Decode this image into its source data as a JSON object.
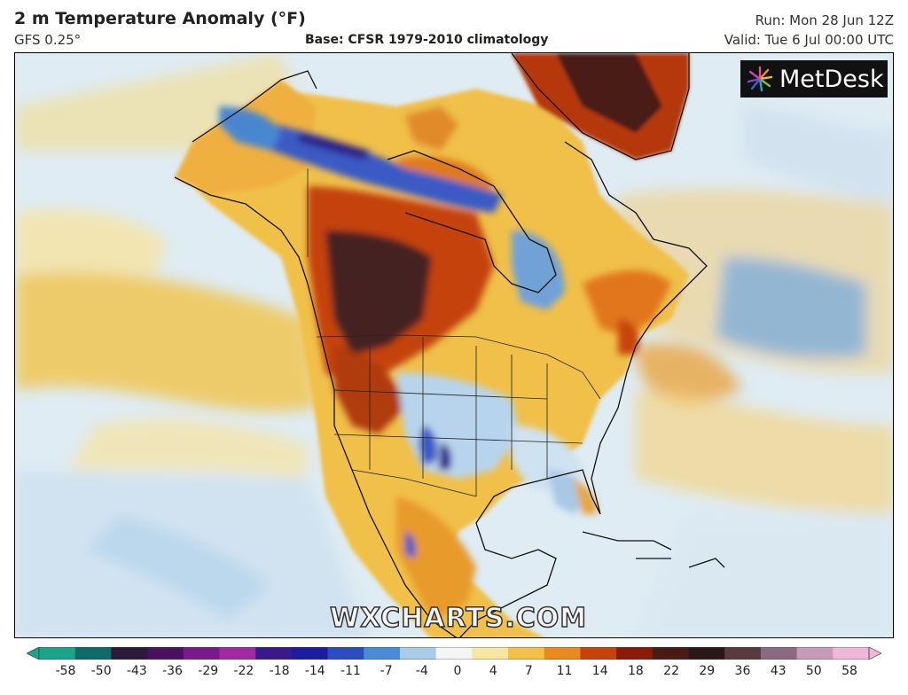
{
  "header": {
    "title": "2 m Temperature Anomaly (°F)",
    "model": "GFS 0.25°",
    "base": "Base: CFSR 1979-2010 climatology",
    "run": "Run: Mon 28 Jun 12Z",
    "valid": "Valid: Tue 6 Jul 00:00 UTC"
  },
  "logo": {
    "text": "MetDesk",
    "icon": "starburst-icon"
  },
  "watermark": "WXCHARTS.COM",
  "colorbar": {
    "ticks": [
      "-58",
      "-50",
      "-43",
      "-36",
      "-29",
      "-22",
      "-18",
      "-14",
      "-11",
      "-7",
      "-4",
      "0",
      "4",
      "7",
      "11",
      "14",
      "18",
      "22",
      "29",
      "36",
      "43",
      "50",
      "58"
    ],
    "colors": [
      "#1aa58a",
      "#0d6b6b",
      "#2b1a3a",
      "#4a1060",
      "#7a1a8a",
      "#a12aa0",
      "#3a1a8a",
      "#1c1c9e",
      "#2a4ec0",
      "#4a8ad8",
      "#a9cde8",
      "#f5f5f5",
      "#f6e6a4",
      "#f2c14a",
      "#e88a1e",
      "#c8420e",
      "#8a1a0a",
      "#4a1a14",
      "#2a1818",
      "#5a3a40",
      "#8a6a80",
      "#c79ab8",
      "#f0b8d8"
    ]
  },
  "colors": {
    "ocean": "#dbe9f2",
    "warm": "#f0c24a",
    "hot": "#c5420f",
    "extreme": "#3e2323",
    "cold": "#3a64c4"
  }
}
